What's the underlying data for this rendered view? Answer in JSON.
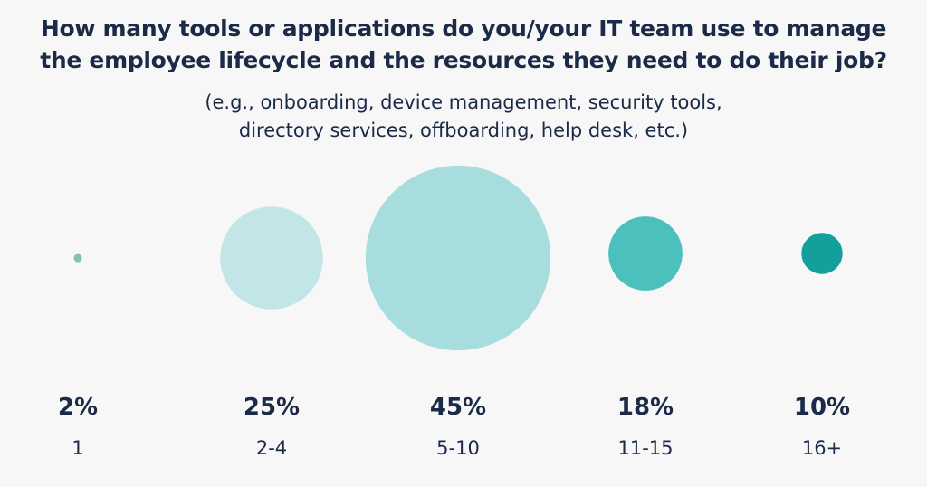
{
  "chart_data": {
    "type": "bubble",
    "title_lines": [
      "How many tools or applications do you/your IT team use to manage",
      "the employee lifecycle and the resources they need to do their job?"
    ],
    "subtitle_lines": [
      "(e.g., onboarding, device management, security tools,",
      "directory services, offboarding, help desk, etc.)"
    ],
    "categories": [
      "1",
      "2-4",
      "5-10",
      "11-15",
      "16+"
    ],
    "values": [
      2,
      25,
      45,
      18,
      10
    ],
    "value_labels": [
      "2%",
      "25%",
      "45%",
      "18%",
      "10%"
    ],
    "colors": [
      "#88bcb4",
      "#c2e5e7",
      "#a8dddd",
      "#4cc0bd",
      "#13a09b"
    ]
  }
}
